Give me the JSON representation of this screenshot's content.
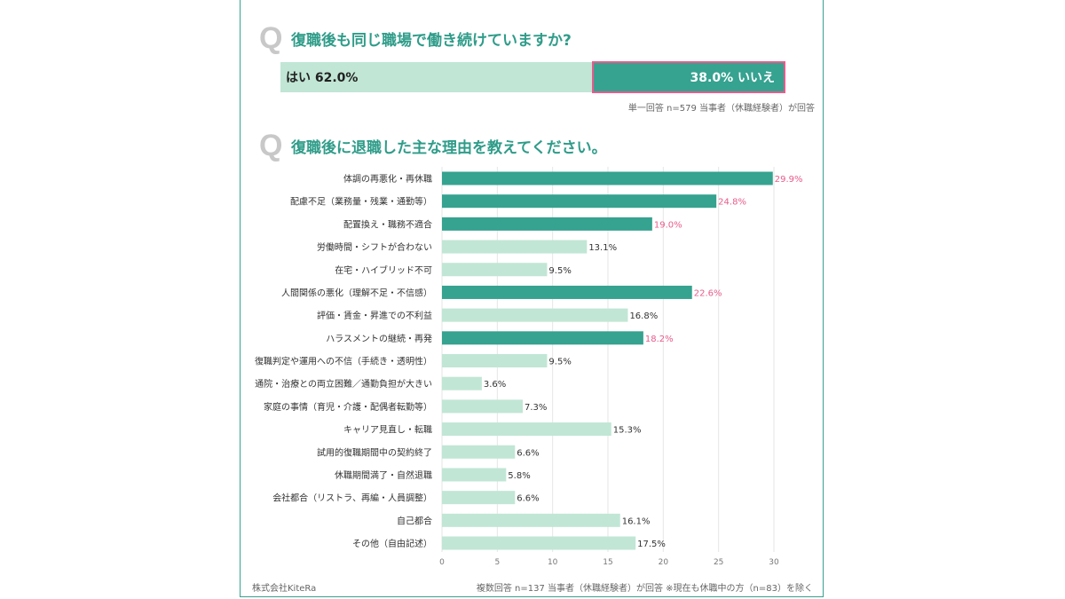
{
  "q1": {
    "mark": "Q",
    "title": "復職後も同じ職場で働き続けていますか?",
    "yes_label": "はい 62.0%",
    "no_label": "38.0% いいえ",
    "yes_value": 62.0,
    "no_value": 38.0,
    "note": "単一回答 n=579 当事者（休職経験者）が回答"
  },
  "q2": {
    "mark": "Q",
    "title": "復職後に退職した主な理由を教えてください。",
    "note": "複数回答 n=137 当事者（休職経験者）が回答 ※現在も休職中の方（n=83）を除く"
  },
  "credit": "株式会社KiteRa",
  "colors": {
    "highlight": "#36a290",
    "normal": "#c1e6d5",
    "highlight_label": "#e85b8c",
    "normal_label": "#333333",
    "grid": "#e6e6e6"
  },
  "chart_data": {
    "type": "bar",
    "orientation": "horizontal",
    "categories": [
      "体調の再悪化・再休職",
      "配慮不足（業務量・残業・通勤等）",
      "配置換え・職務不適合",
      "労働時間・シフトが合わない",
      "在宅・ハイブリッド不可",
      "人間関係の悪化（理解不足・不信感）",
      "評価・賃金・昇進での不利益",
      "ハラスメントの継続・再発",
      "復職判定や運用への不信（手続き・透明性）",
      "通院・治療との両立困難／通勤負担が大きい",
      "家庭の事情（育児・介護・配偶者転勤等）",
      "キャリア見直し・転職",
      "試用的復職期間中の契約終了",
      "休職期間満了・自然退職",
      "会社都合（リストラ、再編・人員調整）",
      "自己都合",
      "その他（自由記述）"
    ],
    "values": [
      29.9,
      24.8,
      19.0,
      13.1,
      9.5,
      22.6,
      16.8,
      18.2,
      9.5,
      3.6,
      7.3,
      15.3,
      6.6,
      5.8,
      6.6,
      16.1,
      17.5
    ],
    "value_labels": [
      "29.9%",
      "24.8%",
      "19.0%",
      "13.1%",
      "9.5%",
      "22.6%",
      "16.8%",
      "18.2%",
      "9.5%",
      "3.6%",
      "7.3%",
      "15.3%",
      "6.6%",
      "5.8%",
      "6.6%",
      "16.1%",
      "17.5%"
    ],
    "highlighted": [
      true,
      true,
      true,
      false,
      false,
      true,
      false,
      true,
      false,
      false,
      false,
      false,
      false,
      false,
      false,
      false,
      false
    ],
    "xlim": [
      0,
      30
    ],
    "xticks": [
      "0",
      "5",
      "10",
      "15",
      "20",
      "25",
      "30"
    ],
    "grid": true
  }
}
